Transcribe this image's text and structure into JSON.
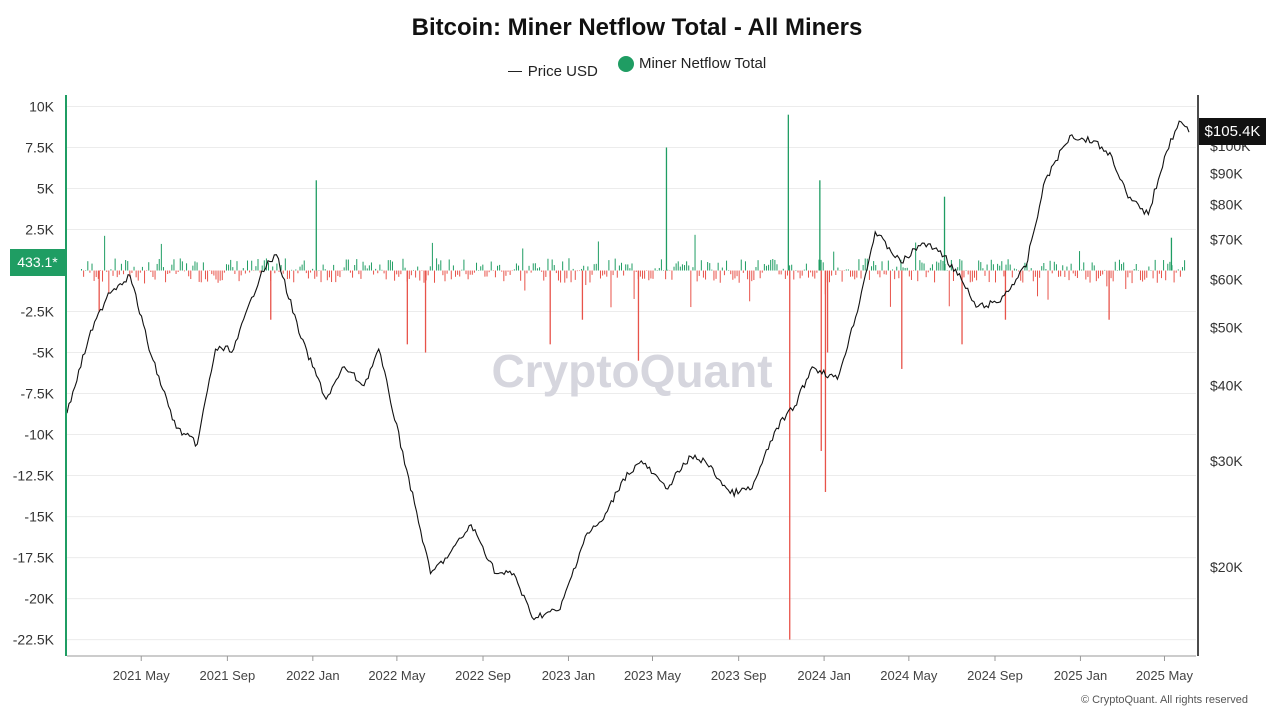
{
  "title": "Bitcoin: Miner Netflow Total - All Miners",
  "legend": {
    "price_label": "Price USD",
    "netflow_label": "Miner Netflow Total"
  },
  "badges": {
    "left_value": "433.1*",
    "right_value": "$105.4K"
  },
  "watermark": "CryptoQuant",
  "copyright": "© CryptoQuant. All rights reserved",
  "colors": {
    "positive": "#1f9d63",
    "negative": "#e8534a",
    "price_line": "#111111",
    "left_axis": "#1f9d63",
    "grid": "#ececec"
  },
  "chart_data": {
    "type": "bar+line",
    "title": "Bitcoin: Miner Netflow Total - All Miners",
    "left_axis": {
      "scale": "linear",
      "range": [
        -23500,
        10700
      ],
      "ticks": [
        10000,
        7500,
        5000,
        2500,
        -2500,
        -5000,
        -7500,
        -10000,
        -12500,
        -15000,
        -17500,
        -20000,
        -22500
      ],
      "tick_labels": [
        "10K",
        "7.5K",
        "5K",
        "2.5K",
        "-2.5K",
        "-5K",
        "-7.5K",
        "-10K",
        "-12.5K",
        "-15K",
        "-17.5K",
        "-20K",
        "-22.5K"
      ]
    },
    "right_axis": {
      "scale": "log",
      "ticks": [
        100000,
        90000,
        80000,
        70000,
        60000,
        50000,
        40000,
        30000,
        20000
      ],
      "tick_labels": [
        "$100K",
        "$90K",
        "$80K",
        "$70K",
        "$60K",
        "$50K",
        "$40K",
        "$30K",
        "$20K"
      ]
    },
    "x_axis": {
      "start": "2021-01-15",
      "end": "2025-06-15",
      "tick_labels": [
        "2021 May",
        "2021 Sep",
        "2022 Jan",
        "2022 May",
        "2022 Sep",
        "2023 Jan",
        "2023 May",
        "2023 Sep",
        "2024 Jan",
        "2024 May",
        "2024 Sep",
        "2025 Jan",
        "2025 May"
      ],
      "tick_dates": [
        "2021-05-01",
        "2021-09-01",
        "2022-01-01",
        "2022-05-01",
        "2022-09-01",
        "2023-01-01",
        "2023-05-01",
        "2023-09-01",
        "2024-01-01",
        "2024-05-01",
        "2024-09-01",
        "2025-01-01",
        "2025-05-01"
      ]
    },
    "series": [
      {
        "name": "Price USD",
        "axis": "right",
        "dates": [
          "2021-01-15",
          "2021-02-15",
          "2021-03-15",
          "2021-04-15",
          "2021-05-15",
          "2021-06-20",
          "2021-07-20",
          "2021-08-15",
          "2021-09-10",
          "2021-10-20",
          "2021-11-10",
          "2021-12-15",
          "2022-01-20",
          "2022-02-15",
          "2022-03-15",
          "2022-04-05",
          "2022-05-15",
          "2022-06-18",
          "2022-07-15",
          "2022-08-15",
          "2022-09-20",
          "2022-10-15",
          "2022-11-10",
          "2022-12-20",
          "2023-01-25",
          "2023-02-20",
          "2023-03-20",
          "2023-04-15",
          "2023-05-20",
          "2023-06-25",
          "2023-07-15",
          "2023-08-20",
          "2023-09-20",
          "2023-10-25",
          "2023-11-20",
          "2023-12-15",
          "2024-01-20",
          "2024-02-15",
          "2024-03-14",
          "2024-04-20",
          "2024-05-20",
          "2024-06-15",
          "2024-07-15",
          "2024-08-05",
          "2024-09-06",
          "2024-10-15",
          "2024-11-12",
          "2024-12-17",
          "2025-01-20",
          "2025-02-15",
          "2025-03-10",
          "2025-04-08",
          "2025-05-01",
          "2025-05-22",
          "2025-06-05"
        ],
        "values": [
          36000,
          48000,
          57000,
          61000,
          45000,
          34000,
          32000,
          46000,
          46000,
          62000,
          66000,
          48000,
          38000,
          43000,
          40000,
          46000,
          29000,
          19500,
          21000,
          23500,
          19500,
          19500,
          16500,
          17000,
          22500,
          24000,
          28000,
          30000,
          27000,
          30500,
          30000,
          26500,
          27000,
          34000,
          37000,
          43000,
          41000,
          52000,
          72000,
          64000,
          69000,
          67000,
          60000,
          54000,
          55000,
          63000,
          88000,
          104000,
          102000,
          96000,
          82000,
          77000,
          96000,
          110000,
          105400
        ]
      },
      {
        "name": "Miner Netflow Total",
        "axis": "left",
        "note": "daily bars; typical range about -800 to +800",
        "notable_spikes": [
          {
            "date": "2021-03-01",
            "value": -2500
          },
          {
            "date": "2021-11-01",
            "value": -3000
          },
          {
            "date": "2022-01-05",
            "value": 5500
          },
          {
            "date": "2022-05-15",
            "value": -4500
          },
          {
            "date": "2022-06-10",
            "value": -5000
          },
          {
            "date": "2022-12-05",
            "value": -4500
          },
          {
            "date": "2023-01-20",
            "value": -3000
          },
          {
            "date": "2023-04-10",
            "value": -5500
          },
          {
            "date": "2023-05-20",
            "value": 7500
          },
          {
            "date": "2023-11-10",
            "value": 9500
          },
          {
            "date": "2023-11-12",
            "value": -22500
          },
          {
            "date": "2023-12-25",
            "value": 5500
          },
          {
            "date": "2023-12-27",
            "value": -11000
          },
          {
            "date": "2024-01-02",
            "value": -13500
          },
          {
            "date": "2024-01-05",
            "value": -5000
          },
          {
            "date": "2024-04-20",
            "value": -6000
          },
          {
            "date": "2024-06-20",
            "value": 4500
          },
          {
            "date": "2024-07-15",
            "value": -4500
          },
          {
            "date": "2024-09-15",
            "value": -3000
          },
          {
            "date": "2025-02-10",
            "value": -3000
          },
          {
            "date": "2025-05-10",
            "value": 2000
          }
        ]
      }
    ]
  }
}
